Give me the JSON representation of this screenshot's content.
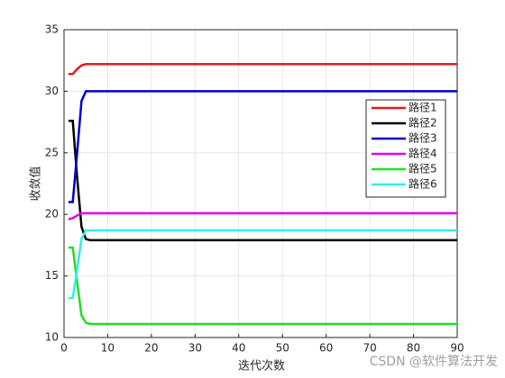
{
  "chart_data": {
    "type": "line",
    "xlabel": "迭代次数",
    "ylabel": "收敛值",
    "x": [
      1,
      2,
      3,
      4,
      5,
      6,
      90
    ],
    "series": [
      {
        "name": "路径1",
        "color": "#e41a1c",
        "values": [
          31.4,
          31.4,
          31.8,
          32.1,
          32.2,
          32.2,
          32.2
        ]
      },
      {
        "name": "路径2",
        "color": "#000000",
        "values": [
          27.6,
          27.6,
          23,
          19,
          18,
          17.9,
          17.9
        ]
      },
      {
        "name": "路径3",
        "color": "#0000cc",
        "values": [
          21,
          21,
          25,
          29.2,
          30,
          30,
          30
        ]
      },
      {
        "name": "路径4",
        "color": "#e600e6",
        "values": [
          19.6,
          19.7,
          19.9,
          20.1,
          20.1,
          20.1,
          20.1
        ]
      },
      {
        "name": "路径5",
        "color": "#22dd22",
        "values": [
          17.3,
          17.3,
          14.5,
          11.8,
          11.2,
          11.1,
          11.1
        ]
      },
      {
        "name": "路径6",
        "color": "#33eeee",
        "values": [
          13.2,
          13.2,
          15.5,
          18,
          18.7,
          18.7,
          18.7
        ]
      }
    ],
    "xlim": [
      0,
      90
    ],
    "xticks": [
      0,
      10,
      20,
      30,
      40,
      50,
      60,
      70,
      80,
      90
    ],
    "ylim": [
      10,
      35
    ],
    "yticks": [
      10,
      15,
      20,
      25,
      30,
      35
    ],
    "grid": true,
    "legend": "right",
    "watermark": "CSDN @软件算法开发"
  }
}
